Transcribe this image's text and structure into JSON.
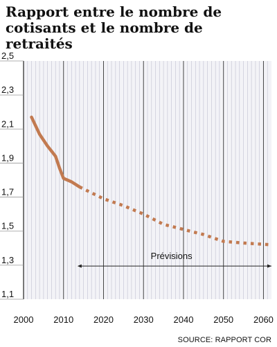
{
  "title_lines": [
    "Rapport entre le nombre de",
    "cotisants et le nombre de retraités"
  ],
  "source": "SOURCE: RAPPORT COR",
  "chart_data": {
    "type": "line",
    "title": "Rapport entre le nombre de cotisants et le nombre de retraités",
    "xlim": [
      2000,
      2062
    ],
    "ylim": [
      1.1,
      2.5
    ],
    "x_ticks": [
      2000,
      2010,
      2020,
      2030,
      2040,
      2050,
      2060
    ],
    "y_ticks": [
      1.1,
      1.3,
      1.5,
      1.7,
      1.9,
      2.1,
      2.3,
      2.5
    ],
    "y_tick_labels": [
      "1,1",
      "1,3",
      "1,5",
      "1,7",
      "1,9",
      "2,1",
      "2,3",
      "2,5"
    ],
    "grid": "vertical",
    "series": [
      {
        "style": "solid",
        "color": "#c27a50",
        "x": [
          2002,
          2004,
          2006,
          2007,
          2008,
          2009,
          2010,
          2012,
          2014
        ],
        "y": [
          2.17,
          2.07,
          2.0,
          1.97,
          1.94,
          1.87,
          1.81,
          1.79,
          1.76
        ]
      },
      {
        "style": "dotted",
        "color": "#c27a50",
        "x": [
          2014,
          2020,
          2025,
          2030,
          2035,
          2040,
          2045,
          2050,
          2055,
          2062
        ],
        "y": [
          1.76,
          1.69,
          1.65,
          1.6,
          1.54,
          1.51,
          1.48,
          1.44,
          1.43,
          1.42
        ]
      }
    ],
    "annotation": {
      "label": "Prévisions",
      "x_start": 2014,
      "x_end": 2062,
      "y": 1.295
    }
  }
}
